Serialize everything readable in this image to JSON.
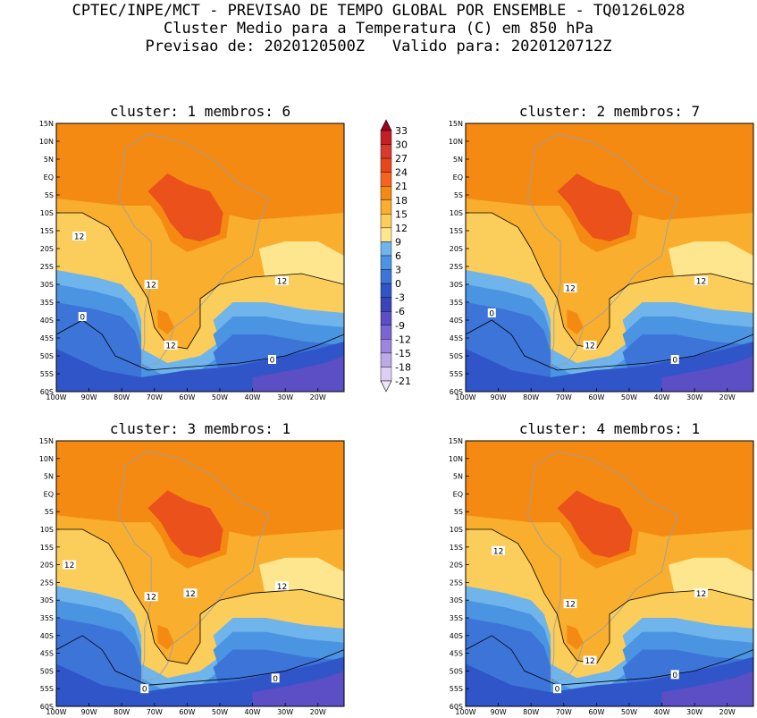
{
  "title": {
    "line1": "CPTEC/INPE/MCT - PREVISAO DE TEMPO GLOBAL POR ENSEMBLE - TQ0126L028",
    "line2": "Cluster Medio para a Temperatura (C) em 850 hPa",
    "line3": "Previsao de: 2020120500Z   Valido para: 2020120712Z"
  },
  "colorbar": {
    "labels": [
      "33",
      "30",
      "27",
      "24",
      "21",
      "18",
      "15",
      "12",
      "9",
      "6",
      "3",
      "0",
      "-3",
      "-6",
      "-9",
      "-12",
      "-15",
      "-18",
      "-21"
    ],
    "colors": [
      "#a0001e",
      "#c41e26",
      "#d73a2a",
      "#e8461d",
      "#f5631e",
      "#f48a12",
      "#f9ae2d",
      "#fbcd5a",
      "#fde68e",
      "#6fb4ea",
      "#4a94e2",
      "#3c74d8",
      "#2f55c8",
      "#3a44b8",
      "#5c4ec4",
      "#7a66d0",
      "#9a86dc",
      "#bcaae6",
      "#dcd0f2"
    ]
  },
  "chart_data": [
    {
      "type": "heatmap",
      "title": "cluster: 1   membros: 6",
      "xticks": [
        "100W",
        "90W",
        "80W",
        "70W",
        "60W",
        "50W",
        "40W",
        "30W",
        "20W"
      ],
      "yticks": [
        "15N",
        "10N",
        "5N",
        "EQ",
        "5S",
        "10S",
        "15S",
        "20S",
        "25S",
        "30S",
        "35S",
        "40S",
        "45S",
        "50S",
        "55S",
        "60S"
      ],
      "xlim": [
        -100,
        -12
      ],
      "ylim": [
        -60,
        15
      ],
      "contour_labels": [
        {
          "text": "12",
          "lon": -93,
          "lat": -16.5
        },
        {
          "text": "12",
          "lon": -71,
          "lat": -30
        },
        {
          "text": "12",
          "lon": -31,
          "lat": -29
        },
        {
          "text": "12",
          "lon": -65,
          "lat": -47
        },
        {
          "text": "0",
          "lon": -92,
          "lat": -39
        },
        {
          "text": "0",
          "lon": -34,
          "lat": -51
        }
      ]
    },
    {
      "type": "heatmap",
      "title": "cluster: 2   membros: 7",
      "xticks": [
        "100W",
        "90W",
        "80W",
        "70W",
        "60W",
        "50W",
        "40W",
        "30W",
        "20W"
      ],
      "yticks": [
        "15N",
        "10N",
        "5N",
        "EQ",
        "5S",
        "10S",
        "15S",
        "20S",
        "25S",
        "30S",
        "35S",
        "40S",
        "45S",
        "50S",
        "55S",
        "60S"
      ],
      "xlim": [
        -100,
        -12
      ],
      "ylim": [
        -60,
        15
      ],
      "contour_labels": [
        {
          "text": "12",
          "lon": -68,
          "lat": -31
        },
        {
          "text": "12",
          "lon": -28,
          "lat": -29
        },
        {
          "text": "12",
          "lon": -62,
          "lat": -47
        },
        {
          "text": "0",
          "lon": -92,
          "lat": -38
        },
        {
          "text": "0",
          "lon": -36,
          "lat": -51
        }
      ]
    },
    {
      "type": "heatmap",
      "title": "cluster: 3   membros: 1",
      "xticks": [
        "100W",
        "90W",
        "80W",
        "70W",
        "60W",
        "50W",
        "40W",
        "30W",
        "20W"
      ],
      "yticks": [
        "15N",
        "10N",
        "5N",
        "EQ",
        "5S",
        "10S",
        "15S",
        "20S",
        "25S",
        "30S",
        "35S",
        "40S",
        "45S",
        "50S",
        "55S",
        "60S"
      ],
      "xlim": [
        -100,
        -12
      ],
      "ylim": [
        -60,
        15
      ],
      "contour_labels": [
        {
          "text": "12",
          "lon": -96,
          "lat": -20
        },
        {
          "text": "12",
          "lon": -71,
          "lat": -29
        },
        {
          "text": "12",
          "lon": -59,
          "lat": -28
        },
        {
          "text": "12",
          "lon": -31,
          "lat": -26
        },
        {
          "text": "0",
          "lon": -73,
          "lat": -55
        },
        {
          "text": "0",
          "lon": -33,
          "lat": -52
        }
      ]
    },
    {
      "type": "heatmap",
      "title": "cluster: 4   membros: 1",
      "xticks": [
        "100W",
        "90W",
        "80W",
        "70W",
        "60W",
        "50W",
        "40W",
        "30W",
        "20W"
      ],
      "yticks": [
        "15N",
        "10N",
        "5N",
        "EQ",
        "5S",
        "10S",
        "15S",
        "20S",
        "25S",
        "30S",
        "35S",
        "40S",
        "45S",
        "50S",
        "55S",
        "60S"
      ],
      "xlim": [
        -100,
        -12
      ],
      "ylim": [
        -60,
        15
      ],
      "contour_labels": [
        {
          "text": "12",
          "lon": -90,
          "lat": -16
        },
        {
          "text": "12",
          "lon": -68,
          "lat": -31
        },
        {
          "text": "12",
          "lon": -28,
          "lat": -28
        },
        {
          "text": "12",
          "lon": -62,
          "lat": -47
        },
        {
          "text": "0",
          "lon": -72,
          "lat": -55
        },
        {
          "text": "0",
          "lon": -36,
          "lat": -51
        }
      ]
    }
  ]
}
